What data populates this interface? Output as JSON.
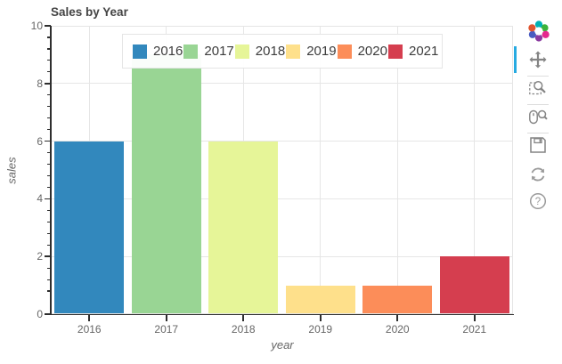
{
  "title": "Sales by Year",
  "chart_data": {
    "type": "bar",
    "title": "Sales by Year",
    "categories": [
      "2016",
      "2017",
      "2018",
      "2019",
      "2020",
      "2021"
    ],
    "values": [
      6,
      9,
      6,
      1,
      1,
      2
    ],
    "bar_colors": [
      "#3288bd",
      "#99d594",
      "#e6f598",
      "#fee08b",
      "#fc8d59",
      "#d53e4f"
    ],
    "xlabel": "year",
    "ylabel": "sales",
    "ylim": [
      0,
      10
    ],
    "yticks": [
      0,
      2,
      4,
      6,
      8,
      10
    ],
    "grid": true,
    "legend_position": "top_center",
    "occlusion_note": "top of 2017 bar is hidden behind the legend box"
  },
  "legend": {
    "entries": [
      {
        "label": "2016",
        "color": "#3288bd"
      },
      {
        "label": "2017",
        "color": "#99d594"
      },
      {
        "label": "2018",
        "color": "#e6f598"
      },
      {
        "label": "2019",
        "color": "#fee08b"
      },
      {
        "label": "2020",
        "color": "#fc8d59"
      },
      {
        "label": "2021",
        "color": "#d53e4f"
      }
    ]
  },
  "toolbar": {
    "logo": "bokeh-logo",
    "active_tool": "pan",
    "active_color": "#26aae1",
    "tools": [
      "pan",
      "box-zoom",
      "wheel-zoom",
      "save",
      "reset",
      "help"
    ]
  },
  "colors": {
    "grid": "#e6e6e6",
    "axis": "#2e2e2e",
    "tick_label": "#666666",
    "title": "#444444",
    "legend_border": "#e5e5e5",
    "toolbar_icon": "#848484"
  }
}
